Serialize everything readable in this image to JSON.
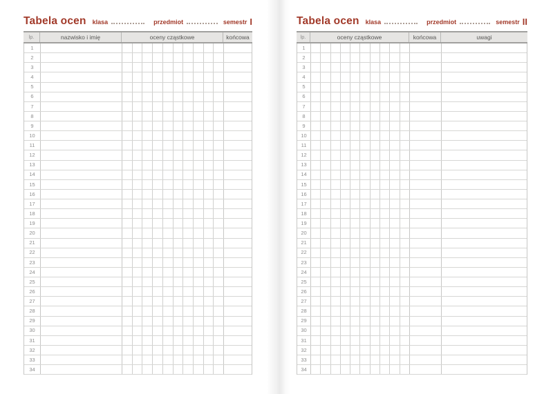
{
  "colors": {
    "accent": "#a23a2a",
    "header_fill": "#e6e5e3",
    "header_border": "#a0a09e",
    "row_line": "#d6d6d4",
    "section_line": "#c6c6c4",
    "grade_line": "#cfcfcd",
    "leader_dots": "#ad9e95"
  },
  "grade_subcolumns": 10,
  "row_numbers": [
    "1",
    "2",
    "3",
    "4",
    "5",
    "6",
    "7",
    "8",
    "9",
    "10",
    "11",
    "12",
    "13",
    "14",
    "15",
    "16",
    "17",
    "18",
    "19",
    "20",
    "21",
    "22",
    "23",
    "24",
    "25",
    "26",
    "27",
    "28",
    "29",
    "30",
    "31",
    "32",
    "33",
    "34"
  ],
  "pages": [
    {
      "title": "Tabela ocen",
      "klasa_label": "klasa",
      "przedmiot_label": "przedmiot",
      "semestr_label": "semestr",
      "semestr_value": "I",
      "columns": [
        {
          "key": "lp",
          "label": "lp."
        },
        {
          "key": "name",
          "label": "nazwisko i imię"
        },
        {
          "key": "grades",
          "label": "oceny cząstkowe"
        },
        {
          "key": "final",
          "label": "końcowa"
        }
      ]
    },
    {
      "title": "Tabela ocen",
      "klasa_label": "klasa",
      "przedmiot_label": "przedmiot",
      "semestr_label": "semestr",
      "semestr_value": "II",
      "columns": [
        {
          "key": "lp",
          "label": "lp."
        },
        {
          "key": "grades",
          "label": "oceny cząstkowe"
        },
        {
          "key": "final",
          "label": "końcowa"
        },
        {
          "key": "uwagi",
          "label": "uwagi"
        }
      ]
    }
  ]
}
